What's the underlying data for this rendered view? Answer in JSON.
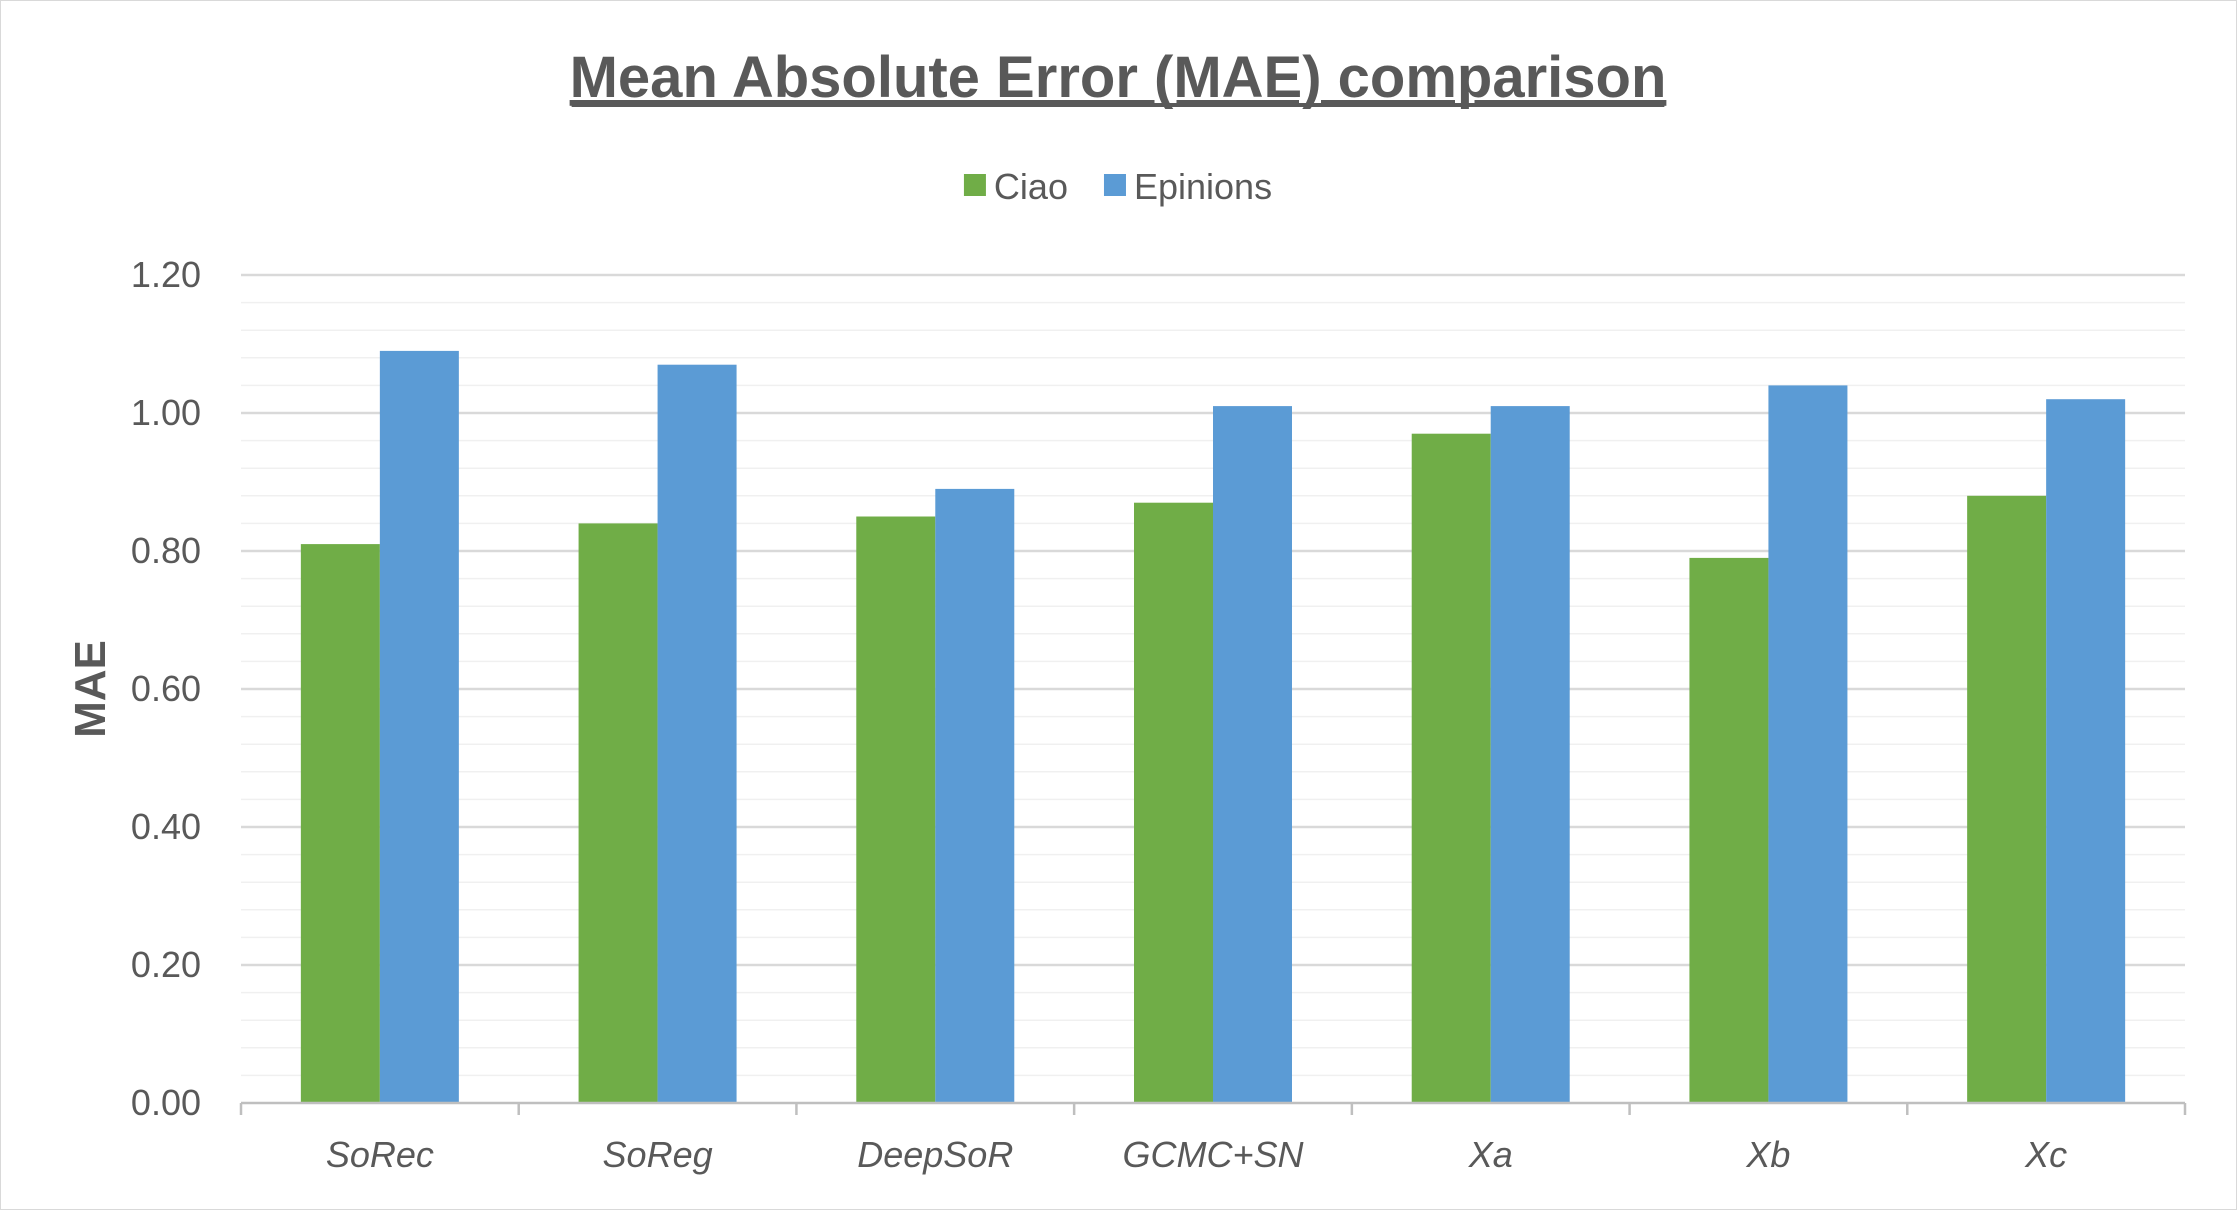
{
  "chart_data": {
    "type": "bar",
    "title": "Mean Absolute Error (MAE) comparison",
    "xlabel": "",
    "ylabel": "MAE",
    "categories": [
      "SoRec",
      "SoReg",
      "DeepSoR",
      "GCMC+SN",
      "Xa",
      "Xb",
      "Xc"
    ],
    "series": [
      {
        "name": "Ciao",
        "color": "#70ad47",
        "values": [
          0.81,
          0.84,
          0.85,
          0.87,
          0.97,
          0.79,
          0.88
        ]
      },
      {
        "name": "Epinions",
        "color": "#5b9bd5",
        "values": [
          1.09,
          1.07,
          0.89,
          1.01,
          1.01,
          1.04,
          1.02
        ]
      }
    ],
    "ylim": [
      0,
      1.2
    ],
    "yticks": [
      "0.00",
      "0.20",
      "0.40",
      "0.60",
      "0.80",
      "1.00",
      "1.20"
    ],
    "major_grid": true,
    "minor_grid": true,
    "legend_position": "top-center"
  }
}
